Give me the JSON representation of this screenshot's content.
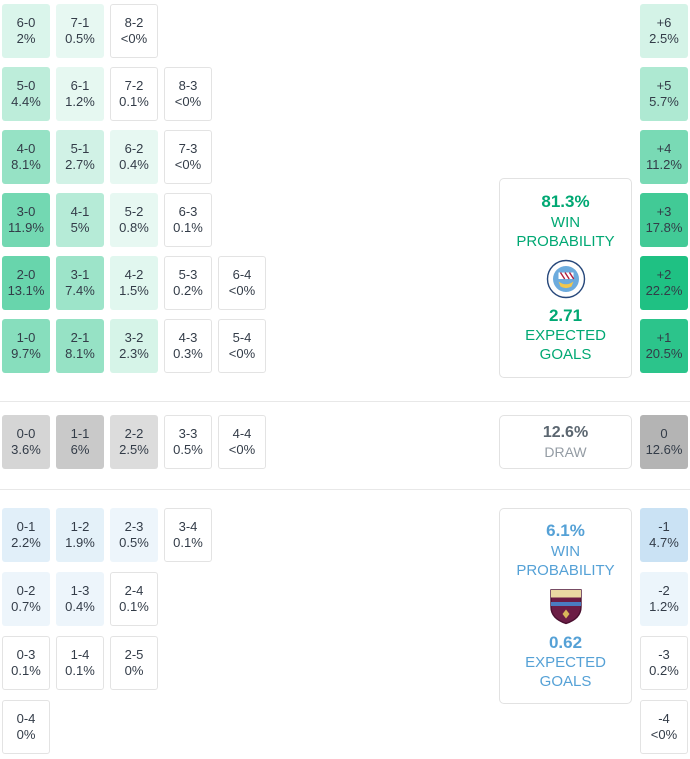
{
  "chart_data": {
    "type": "heatmap",
    "home": {
      "win_probability_pct": 81.3,
      "expected_goals": 2.71,
      "rows": [
        [
          {
            "score": "6-0",
            "pct": "2%",
            "v": 2.0
          },
          {
            "score": "7-1",
            "pct": "0.5%",
            "v": 0.5
          },
          {
            "score": "8-2",
            "pct": "<0%",
            "v": 0
          }
        ],
        [
          {
            "score": "5-0",
            "pct": "4.4%",
            "v": 4.4
          },
          {
            "score": "6-1",
            "pct": "1.2%",
            "v": 1.2
          },
          {
            "score": "7-2",
            "pct": "0.1%",
            "v": 0.1
          },
          {
            "score": "8-3",
            "pct": "<0%",
            "v": 0
          }
        ],
        [
          {
            "score": "4-0",
            "pct": "8.1%",
            "v": 8.1
          },
          {
            "score": "5-1",
            "pct": "2.7%",
            "v": 2.7
          },
          {
            "score": "6-2",
            "pct": "0.4%",
            "v": 0.4
          },
          {
            "score": "7-3",
            "pct": "<0%",
            "v": 0
          }
        ],
        [
          {
            "score": "3-0",
            "pct": "11.9%",
            "v": 11.9
          },
          {
            "score": "4-1",
            "pct": "5%",
            "v": 5.0
          },
          {
            "score": "5-2",
            "pct": "0.8%",
            "v": 0.8
          },
          {
            "score": "6-3",
            "pct": "0.1%",
            "v": 0.1
          }
        ],
        [
          {
            "score": "2-0",
            "pct": "13.1%",
            "v": 13.1
          },
          {
            "score": "3-1",
            "pct": "7.4%",
            "v": 7.4
          },
          {
            "score": "4-2",
            "pct": "1.5%",
            "v": 1.5
          },
          {
            "score": "5-3",
            "pct": "0.2%",
            "v": 0.2
          },
          {
            "score": "6-4",
            "pct": "<0%",
            "v": 0
          }
        ],
        [
          {
            "score": "1-0",
            "pct": "9.7%",
            "v": 9.7
          },
          {
            "score": "2-1",
            "pct": "8.1%",
            "v": 8.1
          },
          {
            "score": "3-2",
            "pct": "2.3%",
            "v": 2.3
          },
          {
            "score": "4-3",
            "pct": "0.3%",
            "v": 0.3
          },
          {
            "score": "5-4",
            "pct": "<0%",
            "v": 0
          }
        ]
      ],
      "goal_diffs": [
        {
          "gd": "+6",
          "pct": "2.5%",
          "v": 2.5
        },
        {
          "gd": "+5",
          "pct": "5.7%",
          "v": 5.7
        },
        {
          "gd": "+4",
          "pct": "11.2%",
          "v": 11.2
        },
        {
          "gd": "+3",
          "pct": "17.8%",
          "v": 17.8
        },
        {
          "gd": "+2",
          "pct": "22.2%",
          "v": 22.2
        },
        {
          "gd": "+1",
          "pct": "20.5%",
          "v": 20.5
        }
      ]
    },
    "draw": {
      "probability_pct": 12.6,
      "rows": [
        [
          {
            "score": "0-0",
            "pct": "3.6%",
            "v": 3.6
          },
          {
            "score": "1-1",
            "pct": "6%",
            "v": 6.0
          },
          {
            "score": "2-2",
            "pct": "2.5%",
            "v": 2.5
          },
          {
            "score": "3-3",
            "pct": "0.5%",
            "v": 0.5
          },
          {
            "score": "4-4",
            "pct": "<0%",
            "v": 0
          }
        ]
      ],
      "goal_diffs": [
        {
          "gd": "0",
          "pct": "12.6%",
          "v": 12.6
        }
      ]
    },
    "away": {
      "win_probability_pct": 6.1,
      "expected_goals": 0.62,
      "rows": [
        [
          {
            "score": "0-1",
            "pct": "2.2%",
            "v": 2.2
          },
          {
            "score": "1-2",
            "pct": "1.9%",
            "v": 1.9
          },
          {
            "score": "2-3",
            "pct": "0.5%",
            "v": 0.5
          },
          {
            "score": "3-4",
            "pct": "0.1%",
            "v": 0.1
          }
        ],
        [
          {
            "score": "0-2",
            "pct": "0.7%",
            "v": 0.7
          },
          {
            "score": "1-3",
            "pct": "0.4%",
            "v": 0.4
          },
          {
            "score": "2-4",
            "pct": "0.1%",
            "v": 0.1
          }
        ],
        [
          {
            "score": "0-3",
            "pct": "0.1%",
            "v": 0.1
          },
          {
            "score": "1-4",
            "pct": "0.1%",
            "v": 0.1
          },
          {
            "score": "2-5",
            "pct": "0%",
            "v": 0
          }
        ],
        [
          {
            "score": "0-4",
            "pct": "0%",
            "v": 0
          }
        ]
      ],
      "goal_diffs": [
        {
          "gd": "-1",
          "pct": "4.7%",
          "v": 4.7
        },
        {
          "gd": "-2",
          "pct": "1.2%",
          "v": 1.2
        },
        {
          "gd": "-3",
          "pct": "0.2%",
          "v": 0.2
        },
        {
          "gd": "-4",
          "pct": "<0%",
          "v": 0
        }
      ]
    }
  },
  "summaries": {
    "home": {
      "win_pct": "81.3%",
      "win_word": "WIN",
      "probability_word": "PROBABILITY",
      "xg": "2.71",
      "expected_word": "EXPECTED",
      "goals_word": "GOALS",
      "team_badge": "manchester-city-badge"
    },
    "draw": {
      "pct": "12.6%",
      "word": "DRAW"
    },
    "away": {
      "win_pct": "6.1%",
      "win_word": "WIN",
      "probability_word": "PROBABILITY",
      "xg": "0.62",
      "expected_word": "EXPECTED",
      "goals_word": "GOALS",
      "team_badge": "burnley-badge"
    }
  },
  "colors": {
    "home_base": "#12bd7c",
    "home_accent": "#00a873",
    "away_base": "#4a9ed8",
    "away_accent": "#55a1d6",
    "draw_base": "#b0b0b0",
    "draw_value_color": "#5b6670",
    "draw_label_color": "#949ca4",
    "empty_border": "#e3e3e3",
    "cell_text": "#333c48",
    "man_city_sky": "#6CABDD",
    "burnley_claret": "#6C1D45"
  }
}
